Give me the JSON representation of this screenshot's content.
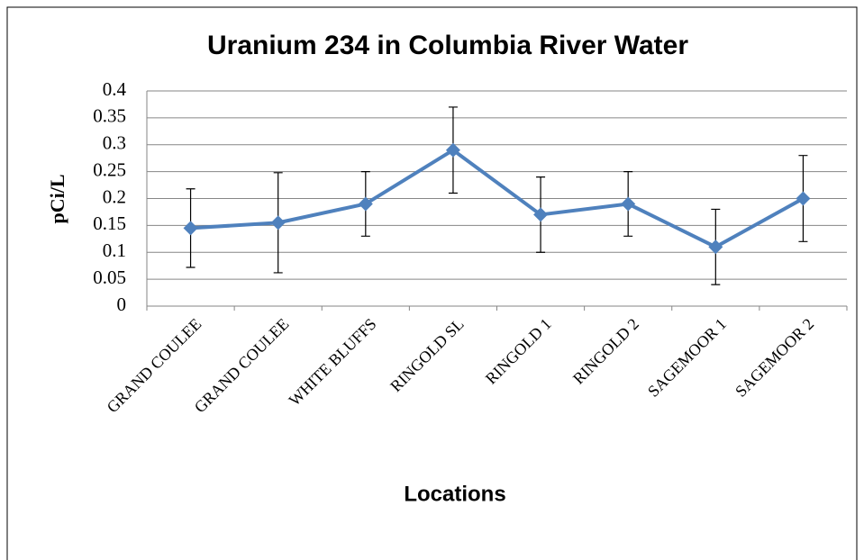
{
  "chart_data": {
    "type": "line",
    "title": "Uranium 234 in Columbia River Water",
    "x_label": "Locations",
    "y_label": "pCi/L",
    "categories": [
      "GRAND COULEE",
      "GRAND COULEE",
      "WHITE BLUFFS",
      "RINGOLD SL",
      "RINGOLD 1",
      "RINGOLD 2",
      "SAGEMOOR 1",
      "SAGEMOOR 2"
    ],
    "series": [
      {
        "name": "Uranium 234",
        "color": "#4f81bd",
        "values": [
          0.145,
          0.155,
          0.19,
          0.29,
          0.17,
          0.19,
          0.11,
          0.2
        ],
        "errors": [
          0.073,
          0.093,
          0.06,
          0.08,
          0.07,
          0.06,
          0.07,
          0.08
        ]
      }
    ],
    "ylim": [
      0,
      0.4
    ],
    "yticks": [
      0,
      0.05,
      0.1,
      0.15,
      0.2,
      0.25,
      0.3,
      0.35,
      0.4
    ],
    "grid": true
  }
}
